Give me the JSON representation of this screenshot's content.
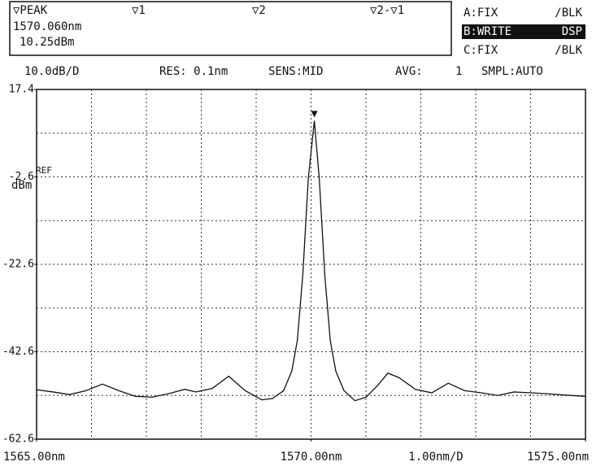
{
  "chart_data": {
    "type": "line",
    "header": {
      "marker_names": [
        "▽PEAK",
        "▽1",
        "▽2",
        "▽2-▽1"
      ],
      "peak_wavelength": "1570.060nm",
      "peak_level": "10.25dBm",
      "traces": [
        {
          "name": "A:FIX",
          "mode": "/BLK",
          "active": false
        },
        {
          "name": "B:WRITE",
          "mode": "DSP",
          "active": true
        },
        {
          "name": "C:FIX",
          "mode": "/BLK",
          "active": false
        }
      ]
    },
    "status": {
      "resolution": "RES: 0.1nm",
      "sensitivity": "SENS:MID",
      "average_label": "AVG:",
      "average": "1",
      "sampling": "SMPL:AUTO"
    },
    "y_scale": {
      "value": 10,
      "label": "10.0dB/D"
    },
    "x_scale": {
      "value": 1,
      "label": "1.00nm/D"
    },
    "ref_label": "REF",
    "y_unit": "dBm",
    "xlim": [
      1565,
      1575
    ],
    "xticks": [
      {
        "value": 1565,
        "label": "1565.00nm"
      },
      {
        "value": 1570,
        "label": "1570.00nm"
      },
      {
        "value": 1575,
        "label": "1575.00nm"
      }
    ],
    "ylim": [
      -62.6,
      17.4
    ],
    "yticks": [
      17.4,
      -2.6,
      -22.6,
      -42.6,
      -62.6
    ],
    "grid": true,
    "peak_marker": {
      "x": 1570.06,
      "y": 10.25
    },
    "series": [
      {
        "color": "#111111",
        "x": [
          1565.0,
          1565.3,
          1565.6,
          1565.9,
          1566.2,
          1566.5,
          1566.8,
          1567.1,
          1567.4,
          1567.7,
          1567.9,
          1568.2,
          1568.5,
          1568.8,
          1569.1,
          1569.3,
          1569.5,
          1569.65,
          1569.75,
          1569.85,
          1569.95,
          1570.06,
          1570.15,
          1570.25,
          1570.35,
          1570.45,
          1570.6,
          1570.8,
          1571.0,
          1571.2,
          1571.4,
          1571.6,
          1571.9,
          1572.2,
          1572.5,
          1572.8,
          1573.1,
          1573.4,
          1573.7,
          1574.0,
          1574.3,
          1574.6,
          1575.0
        ],
        "values": [
          -51.3,
          -51.8,
          -52.4,
          -51.5,
          -50.0,
          -51.5,
          -52.8,
          -53.0,
          -52.2,
          -51.2,
          -51.8,
          -51.0,
          -48.2,
          -51.5,
          -53.6,
          -53.3,
          -51.5,
          -47,
          -40,
          -25,
          -3,
          10.25,
          -3,
          -25,
          -40,
          -47,
          -51.5,
          -53.8,
          -53.0,
          -50.5,
          -47.5,
          -48.5,
          -51.2,
          -52.0,
          -49.8,
          -51.5,
          -52.0,
          -52.6,
          -51.8,
          -52.0,
          -52.2,
          -52.5,
          -52.8
        ]
      }
    ]
  }
}
